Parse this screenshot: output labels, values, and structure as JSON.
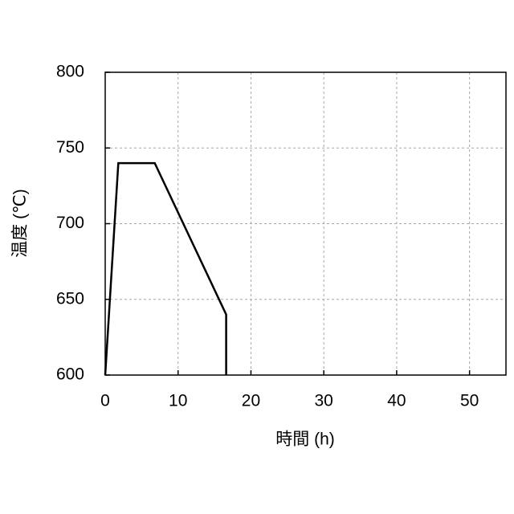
{
  "chart_data": {
    "type": "line",
    "x_label": "時間 (h)",
    "y_label": "温度 (℃)",
    "x": [
      0,
      1.8,
      6.8,
      16.6,
      16.6
    ],
    "values": [
      600,
      740,
      740,
      640,
      600
    ],
    "color": "#000000",
    "xlim": [
      0,
      55
    ],
    "xticks": [
      0,
      10,
      20,
      30,
      40,
      50
    ],
    "ylim": [
      600,
      800
    ],
    "yticks": [
      600,
      650,
      700,
      750,
      800
    ],
    "grid": true
  }
}
